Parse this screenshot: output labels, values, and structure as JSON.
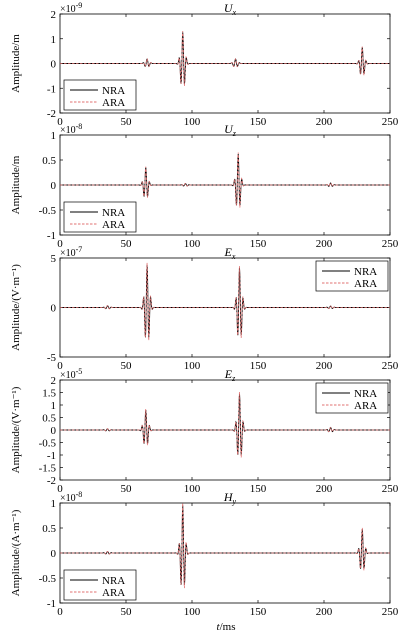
{
  "figure": {
    "xlabel_var": "t",
    "xlabel_unit": "/ms"
  },
  "chart_data": [
    {
      "type": "line",
      "title_base": "U",
      "title_sub": "x",
      "ylabel": "Amplitude/m",
      "exponent_text": "×10",
      "exponent_power": "-9",
      "xlim": [
        0,
        250
      ],
      "ylim": [
        -2,
        2
      ],
      "xticks": [
        "0",
        "50",
        "100",
        "150",
        "200",
        "250"
      ],
      "yticks": [
        "2",
        "1",
        "0",
        "-1",
        "-2"
      ],
      "legend_position": "bottom-left",
      "series": [
        {
          "name": "NRA",
          "color": "#000000",
          "dash": false
        },
        {
          "name": "ARA",
          "color": "#e07070",
          "dash": true
        }
      ],
      "pulses": [
        {
          "t": 66,
          "amp": 0.18,
          "width": 1.6,
          "freq": 0.33
        },
        {
          "t": 93,
          "amp": 1.25,
          "width": 1.5,
          "freq": 0.35
        },
        {
          "t": 133,
          "amp": 0.18,
          "width": 1.6,
          "freq": 0.33
        },
        {
          "t": 229,
          "amp": 0.65,
          "width": 1.5,
          "freq": 0.35
        }
      ]
    },
    {
      "type": "line",
      "title_base": "U",
      "title_sub": "z",
      "ylabel": "Amplitude/m",
      "exponent_text": "×10",
      "exponent_power": "-8",
      "xlim": [
        0,
        250
      ],
      "ylim": [
        -1,
        1
      ],
      "xticks": [
        "0",
        "50",
        "100",
        "150",
        "200",
        "250"
      ],
      "yticks": [
        "1",
        "0.5",
        "0",
        "-0.5",
        "-1"
      ],
      "legend_position": "bottom-left",
      "series": [
        {
          "name": "NRA",
          "color": "#000000",
          "dash": false
        },
        {
          "name": "ARA",
          "color": "#e07070",
          "dash": true
        }
      ],
      "pulses": [
        {
          "t": 65,
          "amp": 0.35,
          "width": 1.5,
          "freq": 0.35
        },
        {
          "t": 95,
          "amp": 0.03,
          "width": 1.6,
          "freq": 0.33
        },
        {
          "t": 135,
          "amp": 0.62,
          "width": 1.5,
          "freq": 0.35
        },
        {
          "t": 205,
          "amp": 0.04,
          "width": 1.6,
          "freq": 0.33
        }
      ]
    },
    {
      "type": "line",
      "title_base": "E",
      "title_sub": "x",
      "ylabel": "Amplitude/(V·m⁻¹)",
      "exponent_text": "×10",
      "exponent_power": "-7",
      "xlim": [
        0,
        250
      ],
      "ylim": [
        -5,
        5
      ],
      "xticks": [
        "0",
        "50",
        "100",
        "150",
        "200",
        "250"
      ],
      "yticks": [
        "5",
        "0",
        "-5"
      ],
      "legend_position": "top-right",
      "series": [
        {
          "name": "NRA",
          "color": "#000000",
          "dash": false
        },
        {
          "name": "ARA",
          "color": "#e07070",
          "dash": true
        }
      ],
      "pulses": [
        {
          "t": 36,
          "amp": 0.18,
          "width": 1.6,
          "freq": 0.33
        },
        {
          "t": 66,
          "amp": 4.3,
          "width": 1.6,
          "freq": 0.36
        },
        {
          "t": 136,
          "amp": 4.0,
          "width": 1.6,
          "freq": 0.36
        },
        {
          "t": 205,
          "amp": 0.15,
          "width": 1.6,
          "freq": 0.33
        }
      ]
    },
    {
      "type": "line",
      "title_base": "E",
      "title_sub": "z",
      "ylabel": "Amplitude/(V·m⁻¹)",
      "exponent_text": "×10",
      "exponent_power": "-5",
      "xlim": [
        0,
        250
      ],
      "ylim": [
        -2,
        2
      ],
      "xticks": [
        "0",
        "50",
        "100",
        "150",
        "200",
        "250"
      ],
      "yticks": [
        "2",
        "1.5",
        "1",
        "0.5",
        "0",
        "-0.5",
        "-1",
        "-1.5",
        "-2"
      ],
      "legend_position": "top-right",
      "series": [
        {
          "name": "NRA",
          "color": "#000000",
          "dash": false
        },
        {
          "name": "ARA",
          "color": "#e07070",
          "dash": true
        }
      ],
      "pulses": [
        {
          "t": 36,
          "amp": 0.05,
          "width": 1.6,
          "freq": 0.33
        },
        {
          "t": 65,
          "amp": 0.8,
          "width": 1.6,
          "freq": 0.35
        },
        {
          "t": 136,
          "amp": 1.45,
          "width": 1.6,
          "freq": 0.35
        },
        {
          "t": 205,
          "amp": 0.1,
          "width": 1.6,
          "freq": 0.33
        }
      ]
    },
    {
      "type": "line",
      "title_base": "H",
      "title_sub": "y",
      "ylabel": "Amplitude/(A·m⁻¹)",
      "exponent_text": "×10",
      "exponent_power": "-8",
      "xlim": [
        0,
        250
      ],
      "ylim": [
        -1,
        1
      ],
      "xticks": [
        "0",
        "50",
        "100",
        "150",
        "200",
        "250"
      ],
      "yticks": [
        "1",
        "0.5",
        "0",
        "-0.5",
        "-1"
      ],
      "legend_position": "bottom-left",
      "series": [
        {
          "name": "NRA",
          "color": "#000000",
          "dash": false
        },
        {
          "name": "ARA",
          "color": "#e07070",
          "dash": true
        }
      ],
      "pulses": [
        {
          "t": 36,
          "amp": 0.03,
          "width": 1.6,
          "freq": 0.33
        },
        {
          "t": 93,
          "amp": 0.95,
          "width": 1.5,
          "freq": 0.36
        },
        {
          "t": 229,
          "amp": 0.48,
          "width": 1.5,
          "freq": 0.35
        }
      ]
    }
  ]
}
